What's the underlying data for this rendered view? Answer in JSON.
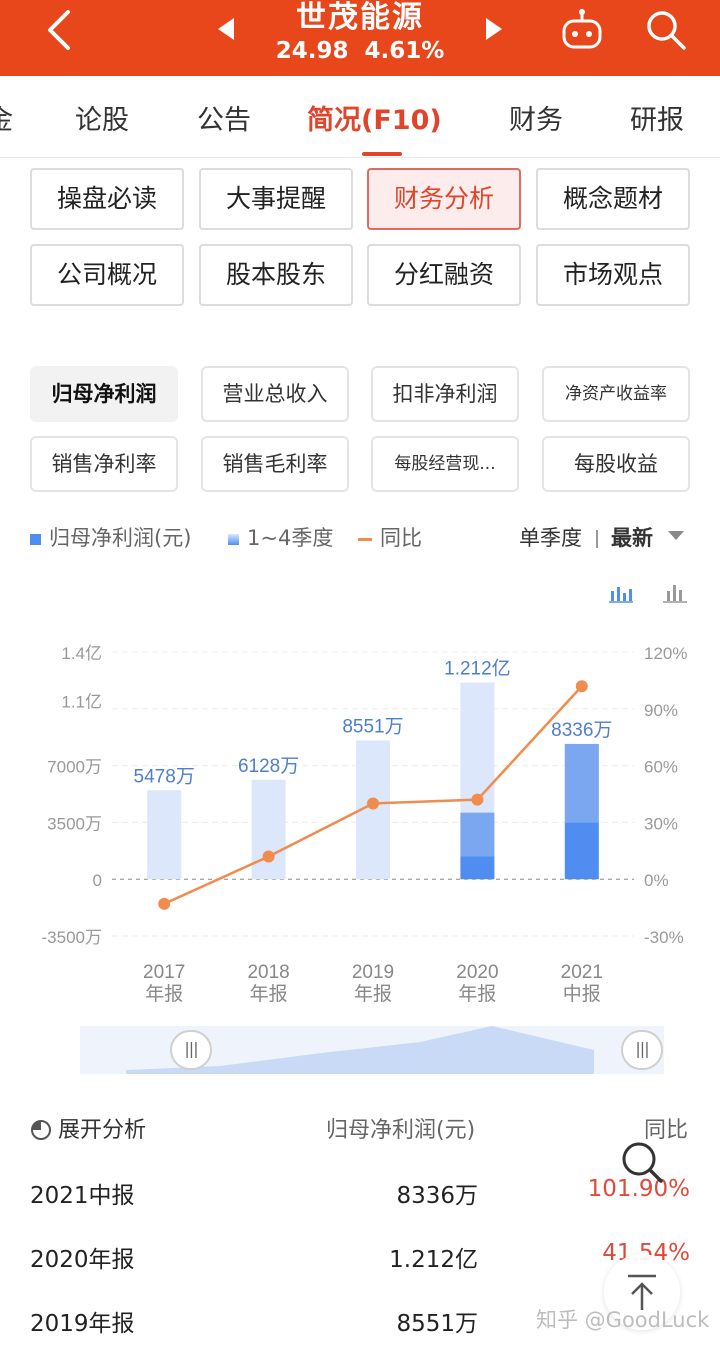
{
  "header": {
    "stock_name": "世茂能源",
    "price": "24.98",
    "change_pct": "4.61%",
    "bg_color": "#e8471c"
  },
  "tabs": [
    {
      "label": "金"
    },
    {
      "label": "论股"
    },
    {
      "label": "公告"
    },
    {
      "label": "简况(F10)",
      "active": true
    },
    {
      "label": "财务"
    },
    {
      "label": "研报"
    }
  ],
  "submenu": [
    {
      "label": "操盘必读"
    },
    {
      "label": "大事提醒"
    },
    {
      "label": "财务分析",
      "active": true
    },
    {
      "label": "概念题材"
    },
    {
      "label": "公司概况"
    },
    {
      "label": "股本股东"
    },
    {
      "label": "分红融资"
    },
    {
      "label": "市场观点"
    }
  ],
  "metrics": [
    {
      "label": "归母净利润",
      "active": true
    },
    {
      "label": "营业总收入"
    },
    {
      "label": "扣非净利润"
    },
    {
      "label": "净资产收益率"
    },
    {
      "label": "销售净利率"
    },
    {
      "label": "销售毛利率"
    },
    {
      "label": "每股经营现..."
    },
    {
      "label": "每股收益"
    }
  ],
  "legend": {
    "series1": "归母净利润(元)",
    "series2": "1~4季度",
    "series3": "同比"
  },
  "mode": {
    "period": "单季度",
    "sort": "最新"
  },
  "chart_data": {
    "type": "bar",
    "categories": [
      "2017年报",
      "2018年报",
      "2019年报",
      "2020年报",
      "2021中报"
    ],
    "category_lines": [
      [
        "2017",
        "年报"
      ],
      [
        "2018",
        "年报"
      ],
      [
        "2019",
        "年报"
      ],
      [
        "2020",
        "年报"
      ],
      [
        "2021",
        "中报"
      ]
    ],
    "values": [
      54780000,
      61280000,
      85510000,
      121200000,
      83360000
    ],
    "value_labels": [
      "5478万",
      "6128万",
      "8551万",
      "1.212亿",
      "8336万"
    ],
    "quarter_stacks": {
      "2020年报": [
        14000000,
        27000000
      ],
      "2021中报": [
        35000000,
        48360000
      ]
    },
    "yoy_pct": [
      -13,
      12,
      40,
      42,
      101.9
    ],
    "left_axis": {
      "ticks": [
        -35000000,
        0,
        35000000,
        70000000,
        110000000,
        140000000
      ],
      "tick_labels": [
        "-3500万",
        "0",
        "3500万",
        "7000万",
        "1.1亿",
        "1.4亿"
      ],
      "ylim": [
        -35000000,
        140000000
      ]
    },
    "right_axis": {
      "ticks": [
        -30,
        0,
        30,
        60,
        90,
        120
      ],
      "tick_labels": [
        "-30%",
        "0%",
        "30%",
        "60%",
        "90%",
        "120%"
      ],
      "ylim": [
        -30,
        120
      ]
    },
    "colors": {
      "bar_light": "#dce7fb",
      "bar_mid": "#7aa7f0",
      "bar_dark": "#4f8ef0",
      "line": "#ef8c4e",
      "label": "#4d7fcf"
    }
  },
  "table": {
    "header_toggle": "展开分析",
    "col_value": "归母净利润(元)",
    "col_yoy": "同比",
    "rows": [
      {
        "period": "2021中报",
        "value": "8336万",
        "yoy": "101.90%"
      },
      {
        "period": "2020年报",
        "value": "1.212亿",
        "yoy": "41.54%"
      },
      {
        "period": "2019年报",
        "value": "8551万",
        "yoy": ""
      }
    ]
  },
  "watermark": "知乎 @GoodLuck"
}
